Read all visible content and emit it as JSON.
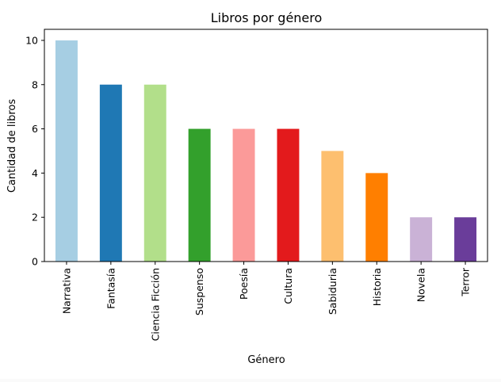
{
  "chart_data": {
    "type": "bar",
    "title": "Libros por género",
    "xlabel": "Género",
    "ylabel": "Cantidad de libros",
    "categories": [
      "Narrativa",
      "Fantasía",
      "Ciencia Ficción",
      "Suspenso",
      "Poesía",
      "Cultura",
      "Sabiduria",
      "Historia",
      "Novela",
      "Terror"
    ],
    "values": [
      10,
      8,
      8,
      6,
      6,
      6,
      5,
      4,
      2,
      2
    ],
    "colors": [
      "#a6cee3",
      "#1f78b4",
      "#b2df8a",
      "#33a02c",
      "#fb9a99",
      "#e31a1c",
      "#fdbf6f",
      "#ff7f00",
      "#cab2d6",
      "#6a3d9a"
    ],
    "ylim": [
      0,
      10.5
    ],
    "yticks": [
      0,
      2,
      4,
      6,
      8,
      10
    ],
    "grid": false,
    "legend": "none"
  }
}
